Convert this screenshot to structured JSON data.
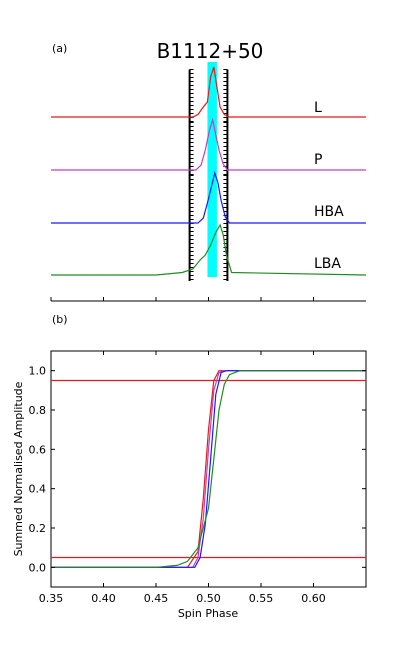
{
  "panel_a": {
    "label": "(a)",
    "title": "B1112+50",
    "band_labels": [
      "L",
      "P",
      "HBA",
      "LBA"
    ]
  },
  "panel_b": {
    "label": "(b)",
    "xlabel": "Spin Phase",
    "ylabel": "Summed Normalised Amplitude"
  },
  "chart_data": [
    {
      "type": "line",
      "title": "B1112+50",
      "x_range": [
        0.35,
        0.65
      ],
      "series": [
        {
          "name": "L",
          "color": "#e41a1c",
          "x": [
            0.35,
            0.485,
            0.49,
            0.495,
            0.499,
            0.502,
            0.505,
            0.508,
            0.511,
            0.515,
            0.52,
            0.65
          ],
          "y": [
            0,
            0,
            0.05,
            0.2,
            0.3,
            0.8,
            1.0,
            0.6,
            0.2,
            0.05,
            0,
            0
          ]
        },
        {
          "name": "P",
          "color": "#c040c0",
          "x": [
            0.35,
            0.488,
            0.493,
            0.497,
            0.501,
            0.504,
            0.507,
            0.51,
            0.514,
            0.518,
            0.65
          ],
          "y": [
            0,
            0,
            0.1,
            0.4,
            0.8,
            1.0,
            0.7,
            0.4,
            0.12,
            0,
            0
          ]
        },
        {
          "name": "HBA",
          "color": "#1a1aff",
          "x": [
            0.35,
            0.49,
            0.495,
            0.499,
            0.503,
            0.506,
            0.509,
            0.512,
            0.516,
            0.52,
            0.65
          ],
          "y": [
            0,
            0,
            0.1,
            0.4,
            0.75,
            1.0,
            0.8,
            0.45,
            0.12,
            0,
            0
          ]
        },
        {
          "name": "LBA",
          "color": "#228B22",
          "x": [
            0.35,
            0.45,
            0.475,
            0.485,
            0.492,
            0.497,
            0.502,
            0.507,
            0.511,
            0.514,
            0.517,
            0.522,
            0.65
          ],
          "y": [
            0,
            0,
            0.05,
            0.12,
            0.3,
            0.4,
            0.6,
            0.85,
            1.0,
            0.8,
            0.4,
            0.05,
            0
          ]
        }
      ],
      "shaded_region": {
        "x": [
          0.499,
          0.508
        ],
        "color": "#00ffff"
      },
      "boundary_markers": {
        "x": [
          0.482,
          0.518
        ]
      }
    },
    {
      "type": "line",
      "xlabel": "Spin Phase",
      "ylabel": "Summed Normalised Amplitude",
      "xlim": [
        0.35,
        0.65
      ],
      "ylim": [
        -0.1,
        1.1
      ],
      "x_ticks": [
        0.35,
        0.4,
        0.45,
        0.5,
        0.55,
        0.6
      ],
      "x_tick_labels": [
        "0.35",
        "0.40",
        "0.45",
        "0.50",
        "0.55",
        "0.60"
      ],
      "y_ticks": [
        0.0,
        0.2,
        0.4,
        0.6,
        0.8,
        1.0
      ],
      "y_tick_labels": [
        "0.0",
        "0.2",
        "0.4",
        "0.6",
        "0.8",
        "1.0"
      ],
      "hlines": [
        {
          "y": 0.05,
          "color": "#e41a1c"
        },
        {
          "y": 0.95,
          "color": "#e41a1c"
        }
      ],
      "series": [
        {
          "name": "L",
          "color": "#e41a1c",
          "x": [
            0.35,
            0.48,
            0.49,
            0.495,
            0.5,
            0.505,
            0.51,
            0.52,
            0.65
          ],
          "y": [
            0,
            0,
            0.08,
            0.35,
            0.7,
            0.95,
            1.0,
            1.0,
            1.0
          ]
        },
        {
          "name": "P",
          "color": "#c040c0",
          "x": [
            0.35,
            0.485,
            0.49,
            0.495,
            0.5,
            0.505,
            0.51,
            0.515,
            0.65
          ],
          "y": [
            0,
            0,
            0.05,
            0.25,
            0.6,
            0.9,
            0.99,
            1.0,
            1.0
          ]
        },
        {
          "name": "HBA",
          "color": "#1a1aff",
          "x": [
            0.35,
            0.487,
            0.492,
            0.497,
            0.502,
            0.507,
            0.512,
            0.517,
            0.65
          ],
          "y": [
            0,
            0,
            0.05,
            0.22,
            0.55,
            0.88,
            0.99,
            1.0,
            1.0
          ]
        },
        {
          "name": "LBA",
          "color": "#228B22",
          "x": [
            0.35,
            0.45,
            0.47,
            0.48,
            0.49,
            0.5,
            0.505,
            0.51,
            0.515,
            0.52,
            0.53,
            0.65
          ],
          "y": [
            0,
            0,
            0.01,
            0.03,
            0.1,
            0.3,
            0.55,
            0.8,
            0.93,
            0.98,
            1.0,
            1.0
          ]
        }
      ]
    }
  ]
}
